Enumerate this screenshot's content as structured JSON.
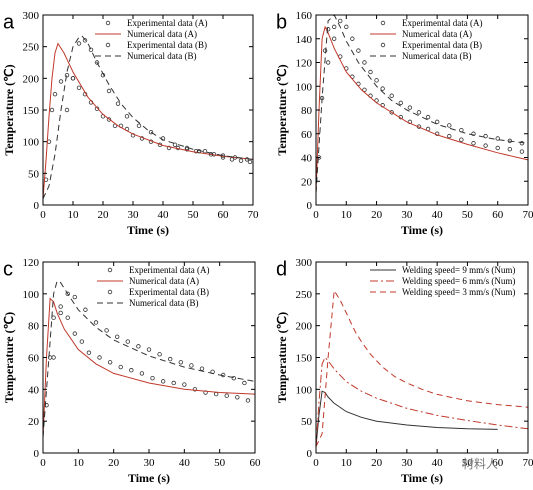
{
  "watermark": "材料人",
  "chart_data": [
    {
      "type": "line",
      "panel": "a",
      "xlabel": "Time (s)",
      "ylabel": "Temperature (℃)",
      "xlim": [
        0,
        70
      ],
      "ylim": [
        0,
        300
      ],
      "xticks": [
        0,
        10,
        20,
        30,
        40,
        50,
        60,
        70
      ],
      "yticks": [
        0,
        50,
        100,
        150,
        200,
        250,
        300
      ],
      "legend_position": "top-right",
      "series": [
        {
          "name": "Experimental data (A)",
          "kind": "points",
          "color": "#333333",
          "x": [
            1,
            2,
            3,
            4,
            6,
            8,
            10,
            12,
            14,
            16,
            18,
            20,
            22,
            24,
            26,
            28,
            30,
            33,
            36,
            39,
            42,
            45,
            48,
            51,
            54,
            57,
            60,
            63,
            66,
            69
          ],
          "y": [
            40,
            100,
            150,
            175,
            195,
            205,
            200,
            185,
            175,
            162,
            152,
            140,
            135,
            125,
            125,
            120,
            110,
            105,
            100,
            95,
            90,
            90,
            88,
            85,
            85,
            80,
            75,
            72,
            70,
            68
          ]
        },
        {
          "name": "Numerical data (A)",
          "kind": "line",
          "dash": "",
          "color": "#c0392b",
          "x": [
            0,
            1,
            2,
            3,
            4,
            5,
            7,
            10,
            15,
            20,
            25,
            30,
            40,
            50,
            60,
            70
          ],
          "y": [
            10,
            70,
            140,
            200,
            240,
            255,
            240,
            210,
            170,
            143,
            125,
            112,
            94,
            84,
            77,
            72
          ]
        },
        {
          "name": "Experimental data (B)",
          "kind": "points",
          "color": "#333333",
          "x": [
            8,
            10,
            12,
            14,
            16,
            18,
            20,
            22,
            25,
            28,
            32,
            36,
            40,
            44,
            48,
            52,
            56,
            60,
            64,
            68
          ],
          "y": [
            150,
            200,
            255,
            260,
            245,
            225,
            205,
            180,
            160,
            140,
            125,
            115,
            105,
            95,
            90,
            85,
            80,
            78,
            75,
            72
          ]
        },
        {
          "name": "Numerical data (B)",
          "kind": "line",
          "dash": "6,4",
          "color": "#333333",
          "x": [
            0,
            2,
            4,
            6,
            8,
            10,
            12,
            13,
            15,
            18,
            22,
            26,
            30,
            35,
            40,
            50,
            60,
            70
          ],
          "y": [
            10,
            30,
            80,
            150,
            210,
            250,
            265,
            267,
            255,
            225,
            190,
            160,
            138,
            118,
            103,
            88,
            78,
            72
          ]
        }
      ]
    },
    {
      "type": "line",
      "panel": "b",
      "xlabel": "Time (s)",
      "ylabel": "Temperature (℃)",
      "xlim": [
        0,
        70
      ],
      "ylim": [
        0,
        160
      ],
      "xticks": [
        0,
        10,
        20,
        30,
        40,
        50,
        60,
        70
      ],
      "yticks": [
        0,
        20,
        40,
        60,
        80,
        100,
        120,
        140,
        160
      ],
      "legend_position": "top-right",
      "series": [
        {
          "name": "Experimental data (A)",
          "kind": "points",
          "color": "#333333",
          "x": [
            1,
            2,
            3,
            4,
            6,
            8,
            10,
            12,
            14,
            16,
            18,
            20,
            22,
            25,
            28,
            31,
            34,
            37,
            40,
            44,
            48,
            52,
            56,
            60,
            64,
            68
          ],
          "y": [
            40,
            90,
            130,
            148,
            140,
            125,
            115,
            108,
            102,
            97,
            92,
            88,
            84,
            78,
            74,
            70,
            66,
            64,
            60,
            58,
            55,
            52,
            50,
            48,
            47,
            45
          ]
        },
        {
          "name": "Numerical data (A)",
          "kind": "line",
          "dash": "",
          "color": "#c0392b",
          "x": [
            0,
            1,
            2,
            3,
            4,
            6,
            10,
            15,
            20,
            30,
            40,
            50,
            60,
            70
          ],
          "y": [
            10,
            80,
            140,
            150,
            145,
            132,
            112,
            97,
            86,
            70,
            59,
            51,
            44,
            38
          ]
        },
        {
          "name": "Experimental data (B)",
          "kind": "points",
          "color": "#333333",
          "x": [
            4,
            6,
            8,
            10,
            12,
            14,
            16,
            18,
            20,
            22,
            25,
            28,
            31,
            34,
            37,
            40,
            44,
            48,
            52,
            56,
            60,
            64,
            68
          ],
          "y": [
            120,
            150,
            155,
            150,
            140,
            130,
            120,
            112,
            105,
            98,
            92,
            86,
            82,
            78,
            74,
            70,
            67,
            63,
            60,
            58,
            56,
            54,
            52
          ]
        },
        {
          "name": "Numerical data (B)",
          "kind": "line",
          "dash": "6,4",
          "color": "#333333",
          "x": [
            0,
            2,
            4,
            6,
            8,
            10,
            14,
            20,
            25,
            30,
            40,
            50,
            60,
            70
          ],
          "y": [
            10,
            90,
            155,
            160,
            150,
            138,
            120,
            100,
            88,
            80,
            68,
            60,
            55,
            52
          ]
        }
      ]
    },
    {
      "type": "line",
      "panel": "c",
      "xlabel": "Time (s)",
      "ylabel": "Temperature (℃)",
      "xlim": [
        0,
        60
      ],
      "ylim": [
        0,
        120
      ],
      "xticks": [
        0,
        10,
        20,
        30,
        40,
        50,
        60
      ],
      "yticks": [
        0,
        20,
        40,
        60,
        80,
        100,
        120
      ],
      "legend_position": "top-right",
      "series": [
        {
          "name": "Experimental data (A)",
          "kind": "points",
          "color": "#333333",
          "x": [
            1,
            2,
            3,
            5,
            7,
            9,
            11,
            13,
            16,
            19,
            22,
            25,
            28,
            31,
            34,
            37,
            40,
            43,
            46,
            49,
            52,
            55,
            58
          ],
          "y": [
            30,
            60,
            85,
            92,
            85,
            75,
            70,
            63,
            60,
            57,
            54,
            52,
            50,
            47,
            45,
            44,
            43,
            40,
            38,
            37,
            36,
            35,
            33
          ]
        },
        {
          "name": "Numerical data (A)",
          "kind": "line",
          "dash": "",
          "color": "#c0392b",
          "x": [
            0,
            1,
            2,
            3,
            4,
            6,
            10,
            15,
            20,
            30,
            40,
            50,
            60
          ],
          "y": [
            10,
            60,
            97,
            95,
            88,
            78,
            65,
            56,
            50,
            44,
            40,
            38,
            37
          ]
        },
        {
          "name": "Experimental data (B)",
          "kind": "points",
          "color": "#333333",
          "x": [
            3,
            5,
            7,
            9,
            12,
            15,
            18,
            21,
            24,
            27,
            30,
            33,
            36,
            39,
            42,
            45,
            48,
            51,
            54,
            57
          ],
          "y": [
            60,
            88,
            100,
            98,
            90,
            82,
            77,
            73,
            70,
            67,
            65,
            62,
            59,
            57,
            55,
            53,
            51,
            49,
            47,
            44
          ]
        },
        {
          "name": "Numerical data (B)",
          "kind": "line",
          "dash": "6,4",
          "color": "#333333",
          "x": [
            0,
            2,
            3,
            4,
            5,
            7,
            10,
            15,
            20,
            30,
            40,
            50,
            60
          ],
          "y": [
            10,
            70,
            100,
            108,
            107,
            100,
            90,
            79,
            71,
            61,
            54,
            49,
            45
          ]
        }
      ]
    },
    {
      "type": "line",
      "panel": "d",
      "xlabel": "Time (s)",
      "ylabel": "Temperature (℃)",
      "xlim": [
        0,
        70
      ],
      "ylim": [
        0,
        300
      ],
      "xticks": [
        0,
        10,
        20,
        30,
        40,
        50,
        60,
        70
      ],
      "yticks": [
        0,
        50,
        100,
        150,
        200,
        250,
        300
      ],
      "legend_position": "top-right",
      "series": [
        {
          "name": "Welding speed= 9 mm/s (Num)",
          "kind": "line",
          "dash": "",
          "color": "#333333",
          "x": [
            0,
            1,
            2,
            3,
            4,
            6,
            10,
            15,
            20,
            30,
            40,
            50,
            60
          ],
          "y": [
            10,
            60,
            97,
            95,
            88,
            78,
            65,
            56,
            50,
            44,
            40,
            38,
            37
          ]
        },
        {
          "name": "Welding speed= 6 mm/s (Num)",
          "kind": "line",
          "dash": "8,3,2,3",
          "color": "#c0392b",
          "x": [
            0,
            1,
            2,
            3,
            4,
            6,
            10,
            15,
            20,
            30,
            40,
            50,
            60,
            70
          ],
          "y": [
            10,
            80,
            140,
            150,
            145,
            132,
            112,
            97,
            86,
            70,
            59,
            51,
            44,
            38
          ]
        },
        {
          "name": "Welding speed= 3 mm/s (Num)",
          "kind": "line",
          "dash": "6,4",
          "color": "#c0392b",
          "x": [
            0,
            2,
            4,
            6,
            8,
            10,
            12,
            13,
            15,
            18,
            22,
            26,
            30,
            35,
            40,
            50,
            60,
            70
          ],
          "y": [
            10,
            30,
            150,
            255,
            240,
            220,
            200,
            190,
            175,
            155,
            135,
            120,
            110,
            100,
            92,
            82,
            76,
            72
          ]
        }
      ]
    }
  ]
}
